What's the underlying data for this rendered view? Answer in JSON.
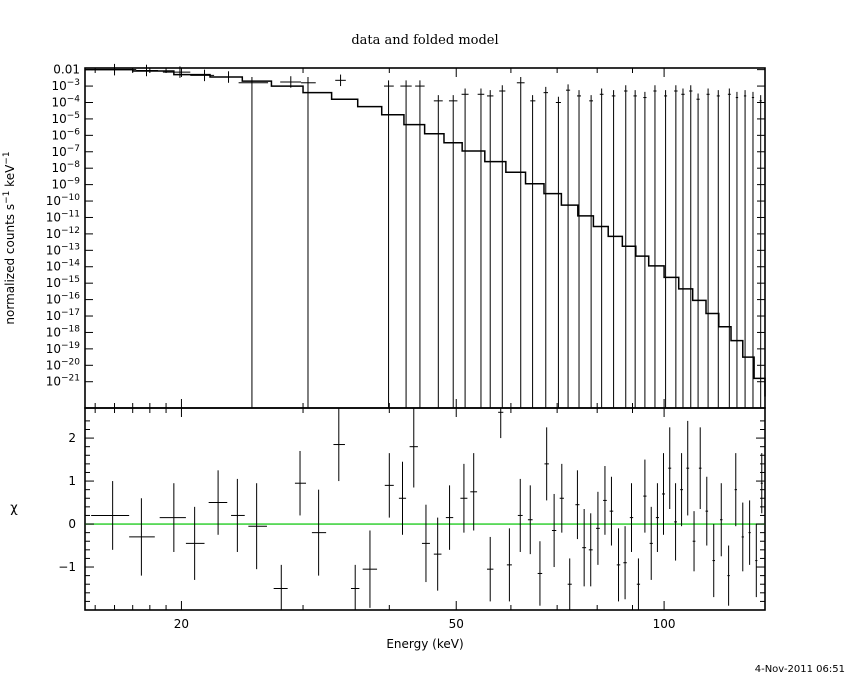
{
  "chart_data": [
    {
      "panel": "top",
      "type": "line",
      "title": "data and folded model",
      "ylabel": "normalized counts s",
      "ylabel_sup1": "−1",
      "ylabel_mid": " keV",
      "ylabel_sup2": "−1",
      "xscale": "log",
      "yscale": "log",
      "xlim": [
        14.5,
        140
      ],
      "ylim_log10": [
        -22.6,
        -1.9
      ],
      "ytick_labels": [
        {
          "v": -2,
          "base": "0.01",
          "exp": ""
        },
        {
          "v": -3,
          "base": "10",
          "exp": "−3"
        },
        {
          "v": -4,
          "base": "10",
          "exp": "−4"
        },
        {
          "v": -5,
          "base": "10",
          "exp": "−5"
        },
        {
          "v": -6,
          "base": "10",
          "exp": "−6"
        },
        {
          "v": -7,
          "base": "10",
          "exp": "−7"
        },
        {
          "v": -8,
          "base": "10",
          "exp": "−8"
        },
        {
          "v": -9,
          "base": "10",
          "exp": "−9"
        },
        {
          "v": -10,
          "base": "10",
          "exp": "−10"
        },
        {
          "v": -11,
          "base": "10",
          "exp": "−11"
        },
        {
          "v": -12,
          "base": "10",
          "exp": "−12"
        },
        {
          "v": -13,
          "base": "10",
          "exp": "−13"
        },
        {
          "v": -14,
          "base": "10",
          "exp": "−14"
        },
        {
          "v": -15,
          "base": "10",
          "exp": "−15"
        },
        {
          "v": -16,
          "base": "10",
          "exp": "−16"
        },
        {
          "v": -17,
          "base": "10",
          "exp": "−17"
        },
        {
          "v": -18,
          "base": "10",
          "exp": "−18"
        },
        {
          "v": -19,
          "base": "10",
          "exp": "−19"
        },
        {
          "v": -20,
          "base": "10",
          "exp": "−20"
        },
        {
          "v": -21,
          "base": "10",
          "exp": "−21"
        }
      ],
      "model_log10": [
        [
          14.5,
          -2.0
        ],
        [
          17.0,
          -2.08
        ],
        [
          19.5,
          -2.3
        ],
        [
          22.0,
          -2.45
        ],
        [
          24.5,
          -2.7
        ],
        [
          27.0,
          -3.0
        ],
        [
          30.0,
          -3.4
        ],
        [
          33.0,
          -3.8
        ],
        [
          36.0,
          -4.25
        ],
        [
          39.0,
          -4.75
        ],
        [
          42.0,
          -5.35
        ],
        [
          45.0,
          -5.9
        ],
        [
          48.0,
          -6.45
        ],
        [
          51.0,
          -6.95
        ],
        [
          55.0,
          -7.6
        ],
        [
          59.0,
          -8.25
        ],
        [
          63.0,
          -8.95
        ],
        [
          67.0,
          -9.55
        ],
        [
          71.0,
          -10.25
        ],
        [
          75.0,
          -10.9
        ],
        [
          79.0,
          -11.55
        ],
        [
          83.0,
          -12.15
        ],
        [
          87.0,
          -12.75
        ],
        [
          91.0,
          -13.35
        ],
        [
          95.0,
          -13.95
        ],
        [
          100.0,
          -14.65
        ],
        [
          105.0,
          -15.35
        ],
        [
          110.0,
          -16.05
        ],
        [
          115.0,
          -16.85
        ],
        [
          120.0,
          -17.65
        ],
        [
          125.0,
          -18.5
        ],
        [
          130.0,
          -19.5
        ],
        [
          135.0,
          -20.8
        ],
        [
          140.0,
          -21.9
        ]
      ],
      "data_points": [
        {
          "x": 16.0,
          "xlo": 14.8,
          "xhi": 17.2,
          "y": -2.0
        },
        {
          "x": 17.8,
          "xlo": 17.2,
          "xhi": 18.5,
          "y": -2.05
        },
        {
          "x": 19.9,
          "xlo": 18.8,
          "xhi": 20.6,
          "y": -2.15
        },
        {
          "x": 21.6,
          "xlo": 20.6,
          "xhi": 22.3,
          "y": -2.35
        },
        {
          "x": 23.4,
          "xlo": 22.3,
          "xhi": 24.2,
          "y": -2.45
        },
        {
          "x": 25.3,
          "xlo": 24.2,
          "xhi": 26.7,
          "y": -2.8,
          "ylo": -22.6
        },
        {
          "x": 28.8,
          "xlo": 27.8,
          "xhi": 29.8,
          "y": -2.75
        },
        {
          "x": 30.5,
          "xlo": 29.8,
          "xhi": 31.3,
          "y": -2.8,
          "ylo": -22.6
        },
        {
          "x": 34.0,
          "xlo": 33.4,
          "xhi": 34.6,
          "y": -2.65
        },
        {
          "x": 39.9,
          "xlo": 39.3,
          "xhi": 40.6,
          "y": -3.0,
          "ylo": -22.6
        },
        {
          "x": 42.3,
          "xlo": 41.5,
          "xhi": 43.1,
          "y": -3.0,
          "ylo": -22.6
        },
        {
          "x": 44.3,
          "xlo": 43.6,
          "xhi": 45.0,
          "y": -3.0,
          "ylo": -22.6
        },
        {
          "x": 47.1,
          "xlo": 46.4,
          "xhi": 47.8,
          "y": -3.9,
          "ylo": -22.6
        },
        {
          "x": 49.5,
          "xlo": 48.8,
          "xhi": 50.2,
          "y": -3.9,
          "ylo": -22.6
        },
        {
          "x": 51.5,
          "xlo": 50.9,
          "xhi": 52.1,
          "y": -3.5,
          "ylo": -22.6
        },
        {
          "x": 54.3,
          "xlo": 53.7,
          "xhi": 54.9,
          "y": -3.5,
          "ylo": -22.6
        },
        {
          "x": 56.0,
          "xlo": 55.4,
          "xhi": 56.6,
          "y": -3.6,
          "ylo": -22.6
        },
        {
          "x": 58.3,
          "xlo": 57.7,
          "xhi": 58.9,
          "y": -3.3,
          "ylo": -22.6
        },
        {
          "x": 62.0,
          "xlo": 61.2,
          "xhi": 62.8,
          "y": -2.8,
          "ylo": -22.6
        },
        {
          "x": 64.5,
          "xlo": 64.0,
          "xhi": 65.1,
          "y": -3.9,
          "ylo": -22.6
        },
        {
          "x": 67.4,
          "xlo": 66.9,
          "xhi": 67.9,
          "y": -3.4,
          "ylo": -22.6
        },
        {
          "x": 70.3,
          "xlo": 69.7,
          "xhi": 70.9,
          "y": -4.0,
          "ylo": -22.6
        },
        {
          "x": 72.6,
          "xlo": 72.1,
          "xhi": 73.1,
          "y": -3.25,
          "ylo": -22.6
        },
        {
          "x": 75.3,
          "xlo": 74.8,
          "xhi": 75.8,
          "y": -3.6,
          "ylo": -22.6
        },
        {
          "x": 78.4,
          "xlo": 77.9,
          "xhi": 78.9,
          "y": -3.9,
          "ylo": -22.6
        },
        {
          "x": 81.2,
          "xlo": 80.7,
          "xhi": 81.7,
          "y": -3.5,
          "ylo": -22.6
        },
        {
          "x": 84.5,
          "xlo": 84.0,
          "xhi": 85.0,
          "y": -3.6,
          "ylo": -22.6
        },
        {
          "x": 88.0,
          "xlo": 87.5,
          "xhi": 88.5,
          "y": -3.3,
          "ylo": -22.6
        },
        {
          "x": 90.8,
          "xlo": 90.3,
          "xhi": 91.3,
          "y": -3.6,
          "ylo": -22.6
        },
        {
          "x": 93.8,
          "xlo": 93.3,
          "xhi": 94.3,
          "y": -3.7,
          "ylo": -22.6
        },
        {
          "x": 97.0,
          "xlo": 96.5,
          "xhi": 97.5,
          "y": -3.3,
          "ylo": -22.6
        },
        {
          "x": 100.5,
          "xlo": 100.0,
          "xhi": 101.0,
          "y": -3.6,
          "ylo": -22.6
        },
        {
          "x": 104.0,
          "xlo": 103.4,
          "xhi": 104.6,
          "y": -3.3,
          "ylo": -22.6
        },
        {
          "x": 106.5,
          "xlo": 105.9,
          "xhi": 107.1,
          "y": -3.5,
          "ylo": -22.6
        },
        {
          "x": 109.3,
          "xlo": 108.7,
          "xhi": 109.9,
          "y": -3.3,
          "ylo": -22.6
        },
        {
          "x": 112.0,
          "xlo": 111.4,
          "xhi": 112.6,
          "y": -3.8,
          "ylo": -22.6
        },
        {
          "x": 115.8,
          "xlo": 115.2,
          "xhi": 116.4,
          "y": -3.5,
          "ylo": -22.6
        },
        {
          "x": 119.8,
          "xlo": 119.2,
          "xhi": 120.4,
          "y": -3.6,
          "ylo": -22.6
        },
        {
          "x": 124.3,
          "xlo": 123.7,
          "xhi": 124.9,
          "y": -3.5,
          "ylo": -22.6
        },
        {
          "x": 127.5,
          "xlo": 127.0,
          "xhi": 128.0,
          "y": -3.7,
          "ylo": -22.6
        },
        {
          "x": 131.0,
          "xlo": 130.5,
          "xhi": 131.5,
          "y": -3.6,
          "ylo": -22.6
        },
        {
          "x": 134.5,
          "xlo": 134.0,
          "xhi": 135.0,
          "y": -3.7,
          "ylo": -22.6
        },
        {
          "x": 138.0,
          "xlo": 137.5,
          "xhi": 138.5,
          "y": -3.9,
          "ylo": -22.6
        }
      ]
    },
    {
      "panel": "bottom",
      "type": "scatter",
      "xlabel": "Energy (keV)",
      "ylabel": "χ",
      "xscale": "log",
      "xlim": [
        14.5,
        140
      ],
      "ylim": [
        -2.0,
        2.7
      ],
      "yticks": [
        -1,
        0,
        1,
        2
      ],
      "ytick_labels": [
        "−1",
        "0",
        "1",
        "2"
      ],
      "xticks": [
        20,
        50,
        100
      ],
      "xtick_labels": [
        "20",
        "50",
        "100"
      ],
      "zero_line_color": "#22cc22",
      "residuals": [
        {
          "x": 15.9,
          "xlo": 14.8,
          "xhi": 16.8,
          "y": 0.2,
          "e": 0.8
        },
        {
          "x": 17.5,
          "xlo": 16.8,
          "xhi": 18.3,
          "y": -0.3,
          "e": 0.9
        },
        {
          "x": 19.5,
          "xlo": 18.6,
          "xhi": 20.3,
          "y": 0.15,
          "e": 0.8
        },
        {
          "x": 20.9,
          "xlo": 20.3,
          "xhi": 21.6,
          "y": -0.45,
          "e": 0.85
        },
        {
          "x": 22.6,
          "xlo": 21.9,
          "xhi": 23.3,
          "y": 0.5,
          "e": 0.75
        },
        {
          "x": 24.1,
          "xlo": 23.6,
          "xhi": 24.7,
          "y": 0.2,
          "e": 0.85
        },
        {
          "x": 25.7,
          "xlo": 25.0,
          "xhi": 26.6,
          "y": -0.05,
          "e": 1.0
        },
        {
          "x": 27.9,
          "xlo": 27.2,
          "xhi": 28.5,
          "y": -1.5,
          "e": 0.55
        },
        {
          "x": 29.7,
          "xlo": 29.2,
          "xhi": 30.3,
          "y": 0.95,
          "e": 0.75
        },
        {
          "x": 31.6,
          "xlo": 30.9,
          "xhi": 32.4,
          "y": -0.2,
          "e": 1.0
        },
        {
          "x": 33.8,
          "xlo": 33.2,
          "xhi": 34.5,
          "y": 1.85,
          "e": 0.85
        },
        {
          "x": 35.7,
          "xlo": 35.2,
          "xhi": 36.2,
          "y": -1.5,
          "e": 0.55
        },
        {
          "x": 37.5,
          "xlo": 36.6,
          "xhi": 38.4,
          "y": -1.05,
          "e": 0.9
        },
        {
          "x": 40.0,
          "xlo": 39.4,
          "xhi": 40.6,
          "y": 0.9,
          "e": 0.75
        },
        {
          "x": 41.8,
          "xlo": 41.3,
          "xhi": 42.3,
          "y": 0.6,
          "e": 0.85
        },
        {
          "x": 43.4,
          "xlo": 42.8,
          "xhi": 44.0,
          "y": 1.8,
          "e": 0.95
        },
        {
          "x": 45.2,
          "xlo": 44.6,
          "xhi": 45.8,
          "y": -0.45,
          "e": 0.9
        },
        {
          "x": 47.0,
          "xlo": 46.4,
          "xhi": 47.6,
          "y": -0.7,
          "e": 0.85
        },
        {
          "x": 48.9,
          "xlo": 48.3,
          "xhi": 49.5,
          "y": 0.15,
          "e": 0.75
        },
        {
          "x": 51.3,
          "xlo": 50.7,
          "xhi": 51.9,
          "y": 0.6,
          "e": 0.8
        },
        {
          "x": 53.0,
          "xlo": 52.4,
          "xhi": 53.6,
          "y": 0.75,
          "e": 0.9
        },
        {
          "x": 56.0,
          "xlo": 55.4,
          "xhi": 56.6,
          "y": -1.05,
          "e": 0.75
        },
        {
          "x": 58.0,
          "xlo": 57.5,
          "xhi": 58.5,
          "y": 2.6,
          "e": 0.6
        },
        {
          "x": 59.7,
          "xlo": 59.2,
          "xhi": 60.2,
          "y": -0.95,
          "e": 0.85
        },
        {
          "x": 61.9,
          "xlo": 61.4,
          "xhi": 62.4,
          "y": 0.2,
          "e": 0.85
        },
        {
          "x": 64.0,
          "xlo": 63.5,
          "xhi": 64.5,
          "y": 0.1,
          "e": 0.8
        },
        {
          "x": 66.1,
          "xlo": 65.6,
          "xhi": 66.6,
          "y": -1.15,
          "e": 0.75
        },
        {
          "x": 67.6,
          "xlo": 67.1,
          "xhi": 68.1,
          "y": 1.4,
          "e": 0.85
        },
        {
          "x": 69.3,
          "xlo": 68.8,
          "xhi": 69.8,
          "y": -0.15,
          "e": 0.85
        },
        {
          "x": 71.1,
          "xlo": 70.6,
          "xhi": 71.6,
          "y": 0.6,
          "e": 0.8
        },
        {
          "x": 73.0,
          "xlo": 72.5,
          "xhi": 73.5,
          "y": -1.4,
          "e": 0.6
        },
        {
          "x": 74.9,
          "xlo": 74.4,
          "xhi": 75.4,
          "y": 0.45,
          "e": 0.8
        },
        {
          "x": 76.6,
          "xlo": 76.1,
          "xhi": 77.1,
          "y": -0.55,
          "e": 0.9
        },
        {
          "x": 78.3,
          "xlo": 77.8,
          "xhi": 78.8,
          "y": -0.6,
          "e": 0.85
        },
        {
          "x": 80.2,
          "xlo": 79.7,
          "xhi": 80.7,
          "y": -0.1,
          "e": 0.85
        },
        {
          "x": 82.1,
          "xlo": 81.6,
          "xhi": 82.6,
          "y": 0.55,
          "e": 0.8
        },
        {
          "x": 83.9,
          "xlo": 83.4,
          "xhi": 84.4,
          "y": 0.3,
          "e": 0.8
        },
        {
          "x": 85.9,
          "xlo": 85.4,
          "xhi": 86.4,
          "y": -0.95,
          "e": 0.85
        },
        {
          "x": 87.8,
          "xlo": 87.3,
          "xhi": 88.3,
          "y": -0.9,
          "e": 0.85
        },
        {
          "x": 89.7,
          "xlo": 89.2,
          "xhi": 90.2,
          "y": 0.15,
          "e": 0.8
        },
        {
          "x": 91.8,
          "xlo": 91.3,
          "xhi": 92.3,
          "y": -1.4,
          "e": 0.6
        },
        {
          "x": 93.8,
          "xlo": 93.3,
          "xhi": 94.3,
          "y": 0.65,
          "e": 0.85
        },
        {
          "x": 95.8,
          "xlo": 95.3,
          "xhi": 96.3,
          "y": -0.45,
          "e": 0.85
        },
        {
          "x": 97.8,
          "xlo": 97.3,
          "xhi": 98.3,
          "y": 0.15,
          "e": 0.8
        },
        {
          "x": 99.8,
          "xlo": 99.3,
          "xhi": 100.3,
          "y": 0.7,
          "e": 0.95
        },
        {
          "x": 101.9,
          "xlo": 101.4,
          "xhi": 102.4,
          "y": 1.3,
          "e": 0.95
        },
        {
          "x": 103.9,
          "xlo": 103.4,
          "xhi": 104.4,
          "y": 0.05,
          "e": 0.9
        },
        {
          "x": 106.0,
          "xlo": 105.5,
          "xhi": 106.5,
          "y": 0.8,
          "e": 0.85
        },
        {
          "x": 108.2,
          "xlo": 107.7,
          "xhi": 108.7,
          "y": 1.3,
          "e": 1.1
        },
        {
          "x": 110.5,
          "xlo": 110.0,
          "xhi": 111.0,
          "y": -0.4,
          "e": 0.7
        },
        {
          "x": 112.8,
          "xlo": 112.3,
          "xhi": 113.3,
          "y": 1.3,
          "e": 0.95
        },
        {
          "x": 115.3,
          "xlo": 114.8,
          "xhi": 115.8,
          "y": 0.3,
          "e": 0.8
        },
        {
          "x": 118.0,
          "xlo": 117.5,
          "xhi": 118.5,
          "y": -0.85,
          "e": 0.85
        },
        {
          "x": 121.0,
          "xlo": 120.5,
          "xhi": 121.5,
          "y": 0.1,
          "e": 0.85
        },
        {
          "x": 124.0,
          "xlo": 123.5,
          "xhi": 124.5,
          "y": -1.2,
          "e": 0.7
        },
        {
          "x": 127.0,
          "xlo": 126.5,
          "xhi": 127.5,
          "y": 0.8,
          "e": 0.85
        },
        {
          "x": 130.0,
          "xlo": 129.5,
          "xhi": 130.5,
          "y": -0.3,
          "e": 0.8
        },
        {
          "x": 133.0,
          "xlo": 132.5,
          "xhi": 133.5,
          "y": -0.2,
          "e": 0.75
        },
        {
          "x": 136.0,
          "xlo": 135.5,
          "xhi": 136.5,
          "y": -0.85,
          "e": 0.85
        },
        {
          "x": 138.5,
          "xlo": 138.0,
          "xhi": 139.0,
          "y": 0.95,
          "e": 0.7
        }
      ]
    }
  ],
  "footer": {
    "timestamp": "4-Nov-2011 06:51"
  }
}
